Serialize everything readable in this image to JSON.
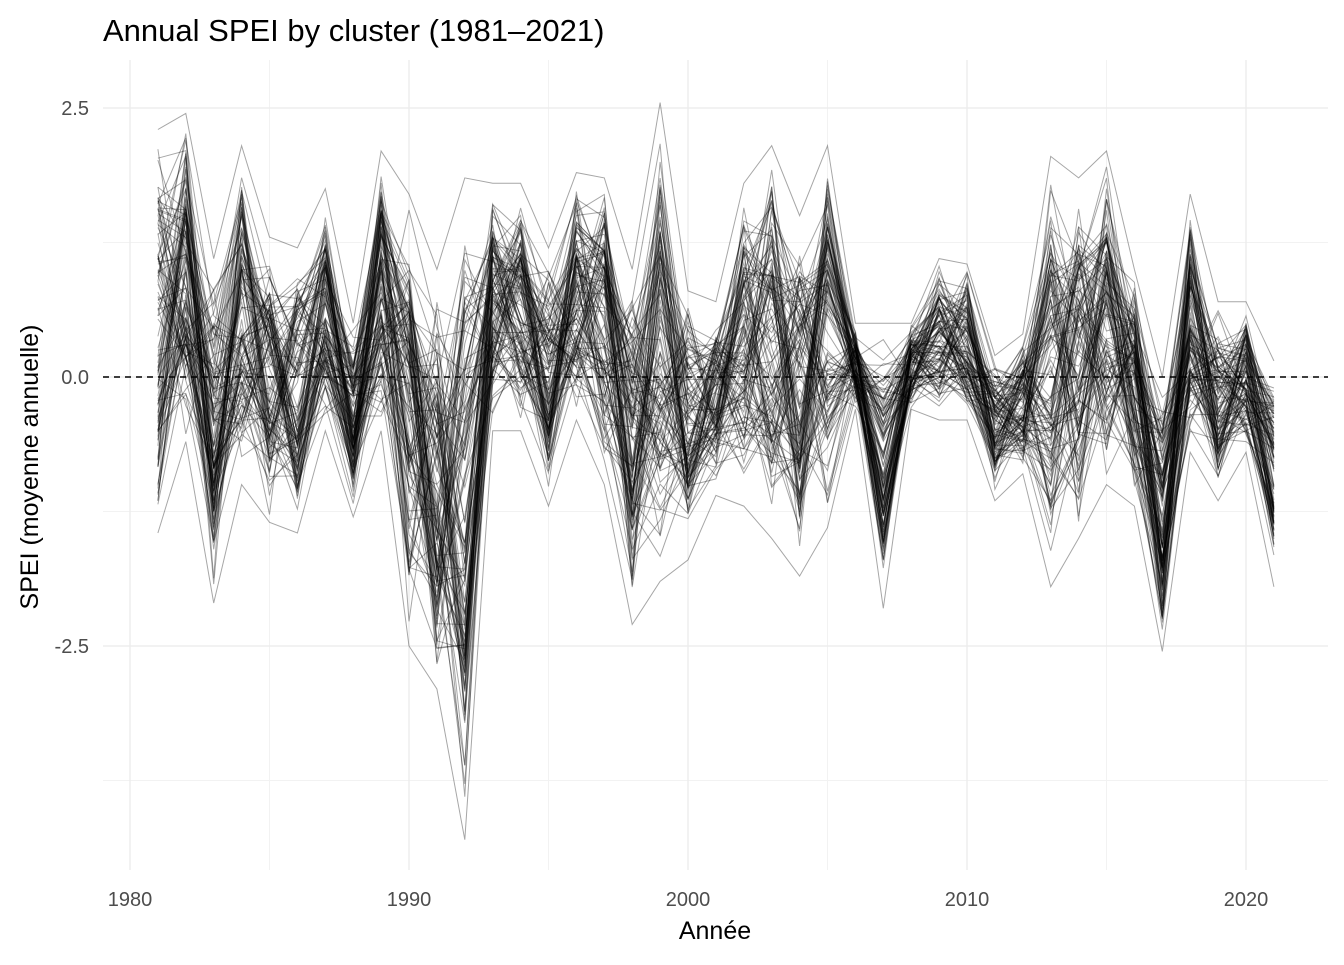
{
  "chart_data": {
    "type": "line",
    "title": "Annual SPEI by cluster (1981–2021)",
    "xlabel": "Année",
    "ylabel": "SPEI (moyenne annuelle)",
    "xlim": [
      1979,
      2023
    ],
    "ylim": [
      -4.5,
      2.8
    ],
    "x_ticks": [
      1980,
      1990,
      2000,
      2010,
      2020
    ],
    "x_tick_labels": [
      "1980",
      "1990",
      "2000",
      "2010",
      "2020"
    ],
    "y_ticks": [
      2.5,
      0,
      -2.5
    ],
    "y_tick_labels": [
      "2.5",
      "0.0",
      "-2.5"
    ],
    "reference_line": {
      "y": 0,
      "style": "dashed"
    },
    "grid": true,
    "legend": "none",
    "line_color": "#000000",
    "line_opacity": 0.35,
    "n_series_approx": 120,
    "note": "Many overlapping series; envelope (per-year max/min) estimated",
    "years": [
      1981,
      1982,
      1983,
      1984,
      1985,
      1986,
      1987,
      1988,
      1989,
      1990,
      1991,
      1992,
      1993,
      1994,
      1995,
      1996,
      1997,
      1998,
      1999,
      2000,
      2001,
      2002,
      2003,
      2004,
      2005,
      2006,
      2007,
      2008,
      2009,
      2010,
      2011,
      2012,
      2013,
      2014,
      2015,
      2016,
      2017,
      2018,
      2019,
      2020,
      2021
    ],
    "max": [
      2.3,
      2.45,
      1.1,
      2.15,
      1.3,
      1.2,
      1.75,
      0.5,
      2.1,
      1.7,
      1.0,
      1.85,
      1.8,
      1.8,
      1.2,
      1.9,
      1.85,
      1.0,
      2.55,
      0.8,
      0.7,
      1.8,
      2.15,
      1.5,
      2.15,
      0.5,
      0.5,
      0.5,
      1.1,
      1.05,
      0.2,
      0.4,
      2.05,
      1.85,
      2.1,
      1.0,
      0.0,
      1.7,
      0.7,
      0.7,
      0.15
    ],
    "min": [
      -1.45,
      -0.6,
      -2.1,
      -1.0,
      -1.35,
      -1.45,
      -0.5,
      -1.3,
      -0.5,
      -2.5,
      -2.9,
      -4.3,
      -0.5,
      -0.5,
      -1.2,
      -0.4,
      -1.0,
      -2.3,
      -1.9,
      -1.7,
      -1.1,
      -1.2,
      -1.5,
      -1.85,
      -1.4,
      -0.3,
      -2.15,
      -0.3,
      -0.4,
      -0.4,
      -1.15,
      -0.9,
      -1.95,
      -1.5,
      -1.0,
      -1.2,
      -2.55,
      -0.7,
      -1.15,
      -0.7,
      -1.95
    ]
  }
}
